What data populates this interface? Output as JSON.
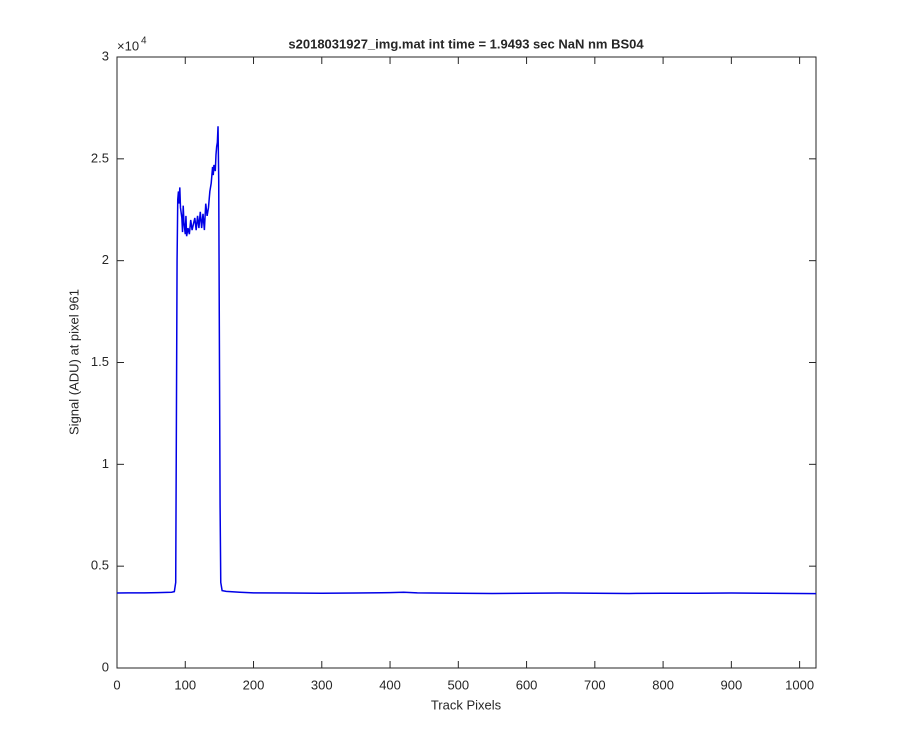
{
  "chart_data": {
    "type": "line",
    "title": "s2018031927_img.mat int time = 1.9493 sec  NaN nm BS04",
    "x_label": "Track Pixels",
    "y_label": "Signal (ADU) at pixel 961",
    "y_multiplier_label": "×10",
    "y_multiplier_exponent": "4",
    "xlim": [
      0,
      1024
    ],
    "xticks": [
      0,
      100,
      200,
      300,
      400,
      500,
      600,
      700,
      800,
      900,
      1000
    ],
    "ylim": [
      0,
      30000
    ],
    "yticks": [
      {
        "value": 0,
        "label": "0"
      },
      {
        "value": 5000,
        "label": "0.5"
      },
      {
        "value": 10000,
        "label": "1"
      },
      {
        "value": 15000,
        "label": "1.5"
      },
      {
        "value": 20000,
        "label": "2"
      },
      {
        "value": 25000,
        "label": "2.5"
      },
      {
        "value": 30000,
        "label": "3"
      }
    ],
    "grid": false,
    "series": [
      {
        "color": "#0000e6",
        "x": [
          0,
          20,
          40,
          60,
          80,
          84,
          86,
          87,
          88,
          89,
          90,
          91,
          92,
          93,
          95,
          96,
          97,
          98,
          100,
          101,
          102,
          104,
          106,
          108,
          110,
          112,
          114,
          116,
          118,
          120,
          122,
          124,
          126,
          128,
          130,
          132,
          134,
          136,
          138,
          140,
          141,
          142,
          144,
          145,
          146,
          147,
          148,
          149,
          150,
          151,
          152,
          154,
          160,
          180,
          200,
          250,
          300,
          350,
          400,
          420,
          440,
          500,
          550,
          600,
          650,
          700,
          750,
          800,
          850,
          900,
          950,
          1000,
          1024
        ],
        "values": [
          3680,
          3690,
          3690,
          3700,
          3720,
          3750,
          4200,
          12000,
          20000,
          23000,
          23400,
          22800,
          23600,
          22600,
          22100,
          21400,
          22700,
          21900,
          21300,
          22200,
          21200,
          21600,
          21300,
          22000,
          21500,
          21800,
          22100,
          21500,
          22200,
          21600,
          22400,
          21600,
          22300,
          21500,
          22800,
          22200,
          22600,
          23400,
          23800,
          24600,
          24200,
          24700,
          24400,
          25200,
          25600,
          25800,
          26600,
          24000,
          16000,
          8000,
          4200,
          3800,
          3760,
          3720,
          3690,
          3680,
          3670,
          3680,
          3700,
          3720,
          3690,
          3670,
          3660,
          3670,
          3680,
          3670,
          3660,
          3670,
          3670,
          3680,
          3670,
          3660,
          3650
        ]
      }
    ]
  }
}
